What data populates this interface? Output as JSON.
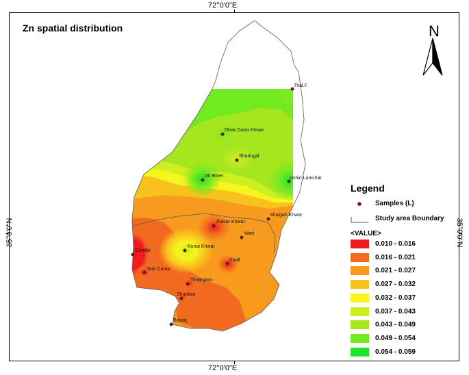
{
  "coords": {
    "top": "72°0'0\"E",
    "bottom": "72°0'0\"E",
    "left": "35°0'0\"N",
    "right": "35°0'0\"N"
  },
  "map_title": "Zn  spatial distribution",
  "north_label": "N",
  "legend": {
    "title": "Legend",
    "samples_label": "Samples (L)",
    "boundary_label": "Study area Boundary",
    "value_header": "<VALUE>",
    "classes": [
      {
        "label": "0.010 - 0.016",
        "color": "#ee1c1c"
      },
      {
        "label": "0.016 - 0.021",
        "color": "#f26a1f"
      },
      {
        "label": "0.021 - 0.027",
        "color": "#f79a1e"
      },
      {
        "label": "0.027 - 0.032",
        "color": "#f8c21c"
      },
      {
        "label": "0.032 - 0.037",
        "color": "#f6f51e"
      },
      {
        "label": "0.037 - 0.043",
        "color": "#cdef1f"
      },
      {
        "label": "0.043 - 0.049",
        "color": "#a6e61f"
      },
      {
        "label": "0.049 - 0.054",
        "color": "#72ea20"
      },
      {
        "label": "0.054 - 0.059",
        "color": "#22e22b"
      }
    ]
  },
  "samples": [
    {
      "name": "Thal.F"
    },
    {
      "name": "Dhok Darra Khwar"
    },
    {
      "name": "Sharingal"
    },
    {
      "name": "Dir River"
    },
    {
      "name": "ushiri Lamchar"
    },
    {
      "name": "Shalgah Khwar"
    },
    {
      "name": "Jhakar Khwar"
    },
    {
      "name": "Wari"
    },
    {
      "name": "Kunai Khwar"
    },
    {
      "name": "Gumbir"
    },
    {
      "name": "Khall"
    },
    {
      "name": "Toor Camp"
    },
    {
      "name": "Timargara"
    },
    {
      "name": "Shgokas"
    },
    {
      "name": "Bosaq"
    }
  ]
}
